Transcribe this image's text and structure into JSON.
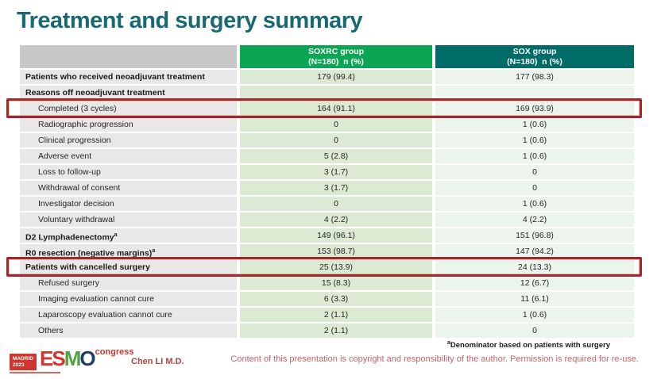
{
  "title": "Treatment and surgery summary",
  "table": {
    "header": {
      "soxrc": {
        "name": "SOXRC group",
        "sub": "(N=180)  n (%)"
      },
      "sox": {
        "name": "SOX group",
        "sub": "(N=180)  n (%)"
      }
    },
    "rows": [
      {
        "label": "Patients who received neoadjuvant treatment",
        "bold": true,
        "indent": false,
        "soxrc": "179 (99.4)",
        "sox": "177 (98.3)",
        "highlight": false
      },
      {
        "label": "Reasons off neoadjuvant treatment",
        "bold": true,
        "indent": false,
        "soxrc": "",
        "sox": "",
        "highlight": false
      },
      {
        "label": "Completed (3 cycles)",
        "bold": false,
        "indent": true,
        "soxrc": "164 (91.1)",
        "sox": "169 (93.9)",
        "highlight": true
      },
      {
        "label": "Radiographic progression",
        "bold": false,
        "indent": true,
        "soxrc": "0",
        "sox": "1 (0.6)",
        "highlight": false
      },
      {
        "label": "Clinical progression",
        "bold": false,
        "indent": true,
        "soxrc": "0",
        "sox": "1 (0.6)",
        "highlight": false
      },
      {
        "label": "Adverse event",
        "bold": false,
        "indent": true,
        "soxrc": "5 (2.8)",
        "sox": "1 (0.6)",
        "highlight": false
      },
      {
        "label": "Loss to follow-up",
        "bold": false,
        "indent": true,
        "soxrc": "3 (1.7)",
        "sox": "0",
        "highlight": false
      },
      {
        "label": "Withdrawal of consent",
        "bold": false,
        "indent": true,
        "soxrc": "3 (1.7)",
        "sox": "0",
        "highlight": false
      },
      {
        "label": "Investigator decision",
        "bold": false,
        "indent": true,
        "soxrc": "0",
        "sox": "1 (0.6)",
        "highlight": false
      },
      {
        "label": "Voluntary withdrawal",
        "bold": false,
        "indent": true,
        "soxrc": "4 (2.2)",
        "sox": "4 (2.2)",
        "highlight": false
      },
      {
        "label": "D2 Lymphadenectomy",
        "sup": "a",
        "bold": true,
        "indent": false,
        "soxrc": "149 (96.1)",
        "sox": "151 (96.8)",
        "highlight": false
      },
      {
        "label": "R0 resection (negative margins)",
        "sup": "a",
        "bold": true,
        "indent": false,
        "soxrc": "153 (98.7)",
        "sox": "147 (94.2)",
        "highlight": false
      },
      {
        "label": "Patients with cancelled surgery",
        "bold": true,
        "indent": false,
        "soxrc": "25 (13.9)",
        "sox": "24 (13.3)",
        "highlight": true
      },
      {
        "label": "Refused surgery",
        "bold": false,
        "indent": true,
        "soxrc": "15 (8.3)",
        "sox": "12 (6.7)",
        "highlight": false
      },
      {
        "label": "Imaging evaluation cannot cure",
        "bold": false,
        "indent": true,
        "soxrc": "6 (3.3)",
        "sox": "11 (6.1)",
        "highlight": false
      },
      {
        "label": "Laparoscopy evaluation cannot cure",
        "bold": false,
        "indent": true,
        "soxrc": "2 (1.1)",
        "sox": "1 (0.6)",
        "highlight": false
      },
      {
        "label": "Others",
        "bold": false,
        "indent": true,
        "soxrc": "2 (1.1)",
        "sox": "0",
        "highlight": false
      }
    ]
  },
  "footer": {
    "footnote_sup": "a",
    "footnote_text": "Denominator based on patients with surgery",
    "author": "Chen LI M.D.",
    "copyright": "Content of this presentation is copyright and responsibility of the author. Permission is required for re-use.",
    "logo": {
      "city": "MADRID",
      "year": "2023",
      "es": "ES",
      "m": "M",
      "o": "O",
      "congress": "congress"
    }
  },
  "colors": {
    "title": "#186A70",
    "soxrc_header": "#0BA554",
    "sox_header": "#006C68",
    "soxrc_cell": "#DCE9D3",
    "sox_cell": "#ECF4EE",
    "label_cell": "#E8E8E8",
    "header_label_cell": "#C8C8C8",
    "highlight_border": "#9C2B31",
    "copyright_text": "#C4636B",
    "author_text": "#B5443C",
    "logo_red": "#D0362F",
    "esmo_green": "#4FA23D",
    "esmo_navy": "#223B6B"
  }
}
